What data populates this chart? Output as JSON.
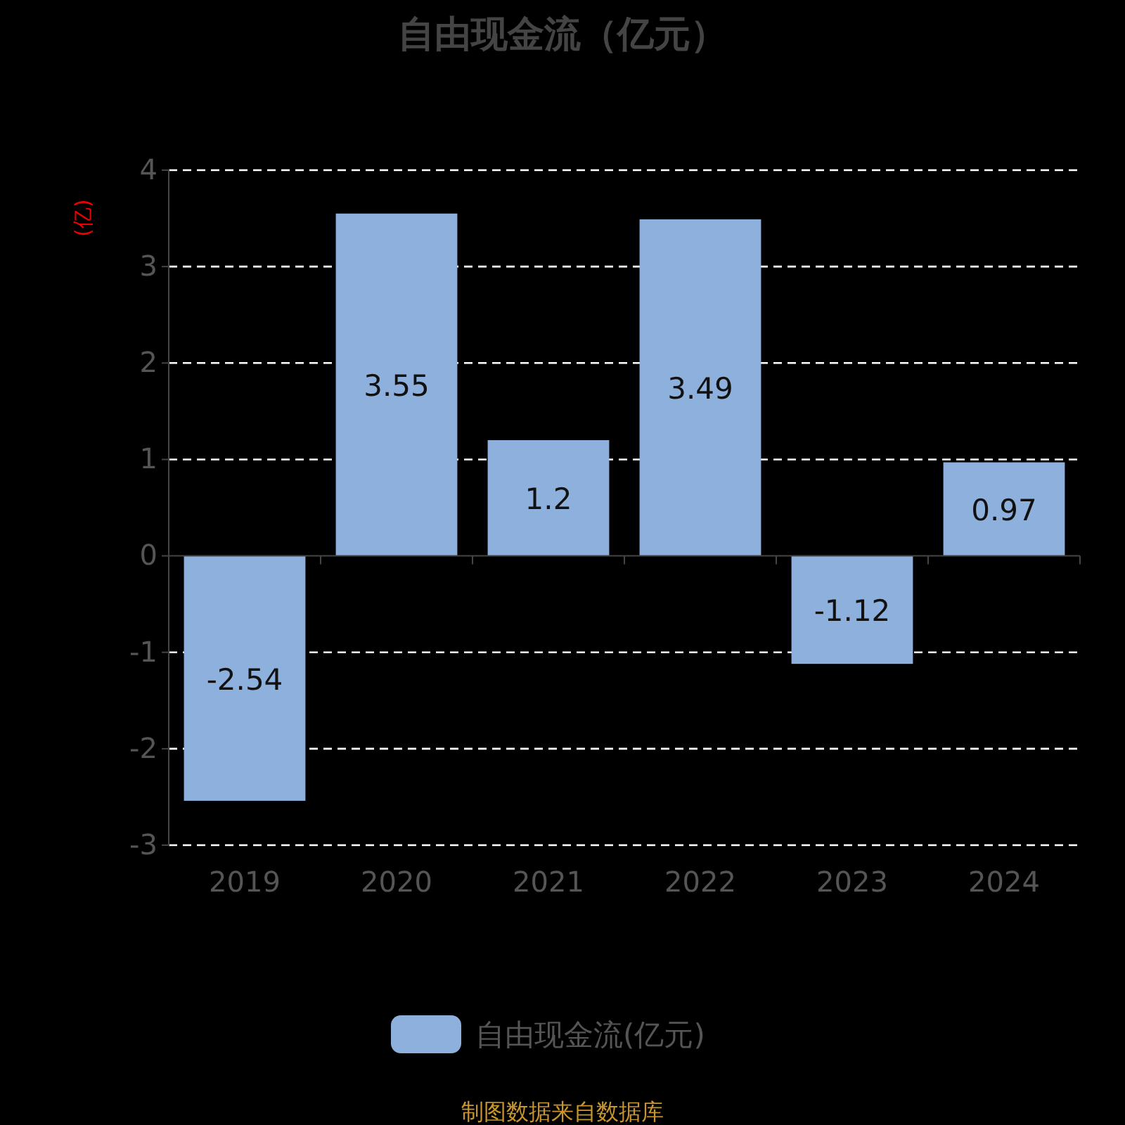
{
  "chart_data": {
    "type": "bar",
    "title": "自由现金流（亿元）",
    "ylabel": "(亿)",
    "categories": [
      "2019",
      "2020",
      "2021",
      "2022",
      "2023",
      "2024"
    ],
    "series": [
      {
        "name": "自由现金流(亿元)",
        "color": "#8eb0dc",
        "values": [
          -2.54,
          3.55,
          1.2,
          3.49,
          -1.12,
          0.97
        ]
      }
    ],
    "ylim": [
      -3,
      4
    ],
    "yticks": [
      -3,
      -2,
      -1,
      0,
      1,
      2,
      3,
      4
    ],
    "grid": "y",
    "legend": "bottom",
    "data_labels": true,
    "annotations": [
      "制图数据来自数据库"
    ]
  }
}
